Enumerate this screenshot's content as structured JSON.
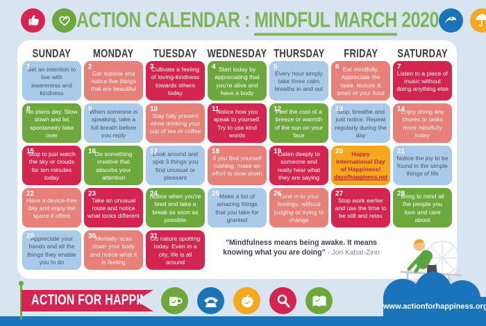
{
  "header": {
    "title_prefix": "ACTION CALENDAR : ",
    "title_highlight": "MINDFUL MARCH",
    "title_suffix": " 2020",
    "left_icons": [
      {
        "name": "thumbs-up-icon",
        "color": "#d32550"
      },
      {
        "name": "heart-icon",
        "color": "#6da83c"
      }
    ],
    "right_icons": [
      {
        "name": "wave-icon",
        "color": "#1a74ba"
      },
      {
        "name": "umbrella-icon",
        "color": "#f6a81c"
      }
    ]
  },
  "calendar": {
    "weekdays": [
      "SUNDAY",
      "MONDAY",
      "TUESDAY",
      "WEDNESDAY",
      "THURSDAY",
      "FRIDAY",
      "SATURDAY"
    ],
    "days": [
      {
        "num": "1",
        "type": "blue",
        "text": "Set an intention to live with awareness and kindness"
      },
      {
        "num": "2",
        "type": "salmon",
        "text": "Get outside and notice five things that are beautiful"
      },
      {
        "num": "3",
        "type": "crimson",
        "text": "Cultivate a feeling of loving-kindness towards others today"
      },
      {
        "num": "4",
        "type": "green",
        "text": "Start today by appreciating that you're alive and have a body"
      },
      {
        "num": "5",
        "type": "blue",
        "text": "Every hour simply take three calm breaths in and out"
      },
      {
        "num": "6",
        "type": "salmon",
        "text": "Eat mindfully. Appreciate the taste, texture & smell of your food"
      },
      {
        "num": "7",
        "type": "crimson",
        "text": "Listen to a piece of music without doing anything else"
      },
      {
        "num": "8",
        "type": "green",
        "text": "No plans day. Slow down and let spontaneity take over"
      },
      {
        "num": "9",
        "type": "blue",
        "text": "When someone is speaking, take a full breath before you reply"
      },
      {
        "num": "10",
        "type": "salmon",
        "text": "Stay fully present while drinking your cup of tea or coffee"
      },
      {
        "num": "11",
        "type": "crimson",
        "text": "Notice how you speak to yourself. Try to use kind words"
      },
      {
        "num": "12",
        "type": "green",
        "text": "Feel the cool of a breeze or warmth of the sun on your face"
      },
      {
        "num": "13",
        "type": "blue",
        "text": "Stop, breathe and just notice. Repeat regularly during the day"
      },
      {
        "num": "14",
        "type": "salmon",
        "text": "Enjoy doing any chores or tasks more mindfully today"
      },
      {
        "num": "15",
        "type": "crimson",
        "text": "Stop to just watch the sky or clouds for ten minutes today"
      },
      {
        "num": "16",
        "type": "green",
        "text": "Do something creative that absorbs your attention"
      },
      {
        "num": "17",
        "type": "blue",
        "text": "Look around and spot 3 things you find unusual or pleasant"
      },
      {
        "num": "18",
        "type": "salmon",
        "text": "If you find yourself rushing, make an effort to slow down"
      },
      {
        "num": "19",
        "type": "crimson",
        "text": "Listen deeply to someone and really hear what they are saying"
      },
      {
        "num": "20",
        "type": "orange",
        "text": "Happy International Day of Happiness!",
        "link": "dayofhappiness.net"
      },
      {
        "num": "21",
        "type": "blue",
        "text": "Notice the joy to be found in the simple things of life"
      },
      {
        "num": "22",
        "type": "salmon",
        "text": "Have a device-free day and enjoy the space it offers"
      },
      {
        "num": "23",
        "type": "crimson",
        "text": "Take an unusual route and notice what looks different"
      },
      {
        "num": "24",
        "type": "green",
        "text": "Notice when you're tired and take a break as soon as possible"
      },
      {
        "num": "25",
        "type": "blue",
        "text": "Make a list of amazing things that you take for granted"
      },
      {
        "num": "26",
        "type": "salmon",
        "text": "Tune in to your feelings, without judging or trying to change"
      },
      {
        "num": "27",
        "type": "crimson",
        "text": "Stop work earlier and use the time to be still and relax"
      },
      {
        "num": "28",
        "type": "green",
        "text": "Bring to mind all the people you love and care about"
      },
      {
        "num": "29",
        "type": "blue",
        "text": "Appreciate your hands and all the things they enable you to do"
      },
      {
        "num": "30",
        "type": "salmon",
        "text": "Mentally scan down your body and notice what it is feeling"
      },
      {
        "num": "31",
        "type": "crimson",
        "text": "Go nature spotting today. Even in a city, life is all around"
      }
    ]
  },
  "quote": {
    "text": "\"Mindfulness means being awake. It means knowing what you are doing\"",
    "attribution": " - Jon Kabat-Zinn"
  },
  "footer": {
    "flag_label": "ACTION FOR HAPPINESS",
    "url": "www.actionforhappiness.org",
    "icons": [
      {
        "name": "mug-icon",
        "color": "#6da83c"
      },
      {
        "name": "phone-icon",
        "color": "#1a74ba"
      },
      {
        "name": "apple-icon",
        "color": "#f6a81c"
      },
      {
        "name": "search-icon",
        "color": "#d32550"
      },
      {
        "name": "book-icon",
        "color": "#6da83c"
      }
    ]
  },
  "colors": {
    "background": "#d9e4f1",
    "panel": "#ffffff",
    "blue_cell": "#a9cae9",
    "salmon_cell": "#e68079",
    "crimson_cell": "#d32550",
    "green_cell": "#6da83c",
    "orange_cell": "#f6a81c",
    "title_green": "#7eb55a",
    "footer_blue": "#1a74ba"
  }
}
